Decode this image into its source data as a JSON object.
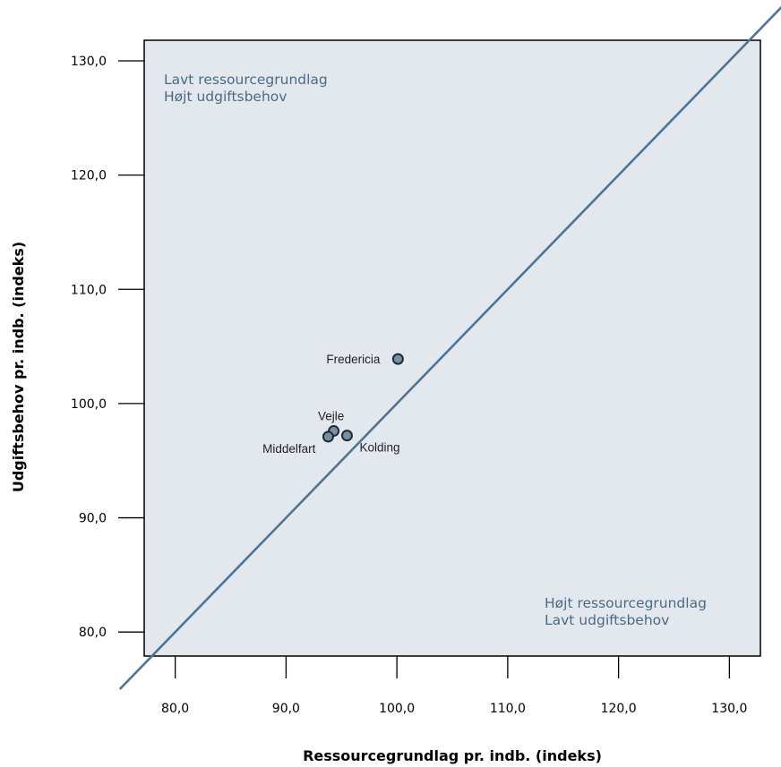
{
  "chart_data": {
    "type": "scatter",
    "xlabel": "Ressourcegrundlag pr. indb. (indeks)",
    "ylabel": "Udgiftsbehov pr. indb. (indeks)",
    "xlim": [
      77.2,
      132.8
    ],
    "ylim": [
      77.9,
      131.8
    ],
    "xticks": [
      80,
      90,
      100,
      110,
      120,
      130
    ],
    "yticks": [
      80,
      90,
      100,
      110,
      120,
      130
    ],
    "xtick_labels": [
      "80,0",
      "90,0",
      "100,0",
      "110,0",
      "120,0",
      "130,0"
    ],
    "ytick_labels": [
      "80,0",
      "90,0",
      "100,0",
      "110,0",
      "120,0",
      "130,0"
    ],
    "points": [
      {
        "name": "Fredericia",
        "x": 100.1,
        "y": 103.9,
        "label_pos": "left"
      },
      {
        "name": "Vejle",
        "x": 94.3,
        "y": 97.6,
        "label_pos": "above"
      },
      {
        "name": "Middelfart",
        "x": 93.8,
        "y": 97.1,
        "label_pos": "below-left"
      },
      {
        "name": "Kolding",
        "x": 95.5,
        "y": 97.2,
        "label_pos": "below-right"
      }
    ],
    "reference_line": {
      "type": "diagonal",
      "slope": 1,
      "intercept": 0
    },
    "grid": false,
    "colors": {
      "plot_bg": "#E3E8EE",
      "line": "#4F7594",
      "marker_fill": "#7890A2",
      "marker_edge": "#1D2A36",
      "annotation_text": "#4A6A84"
    }
  },
  "annotations": {
    "top_left": [
      "Lavt ressourcegrundlag",
      "Højt udgiftsbehov"
    ],
    "bottom_right": [
      "Højt ressourcegrundlag",
      "Lavt udgiftsbehov"
    ]
  }
}
